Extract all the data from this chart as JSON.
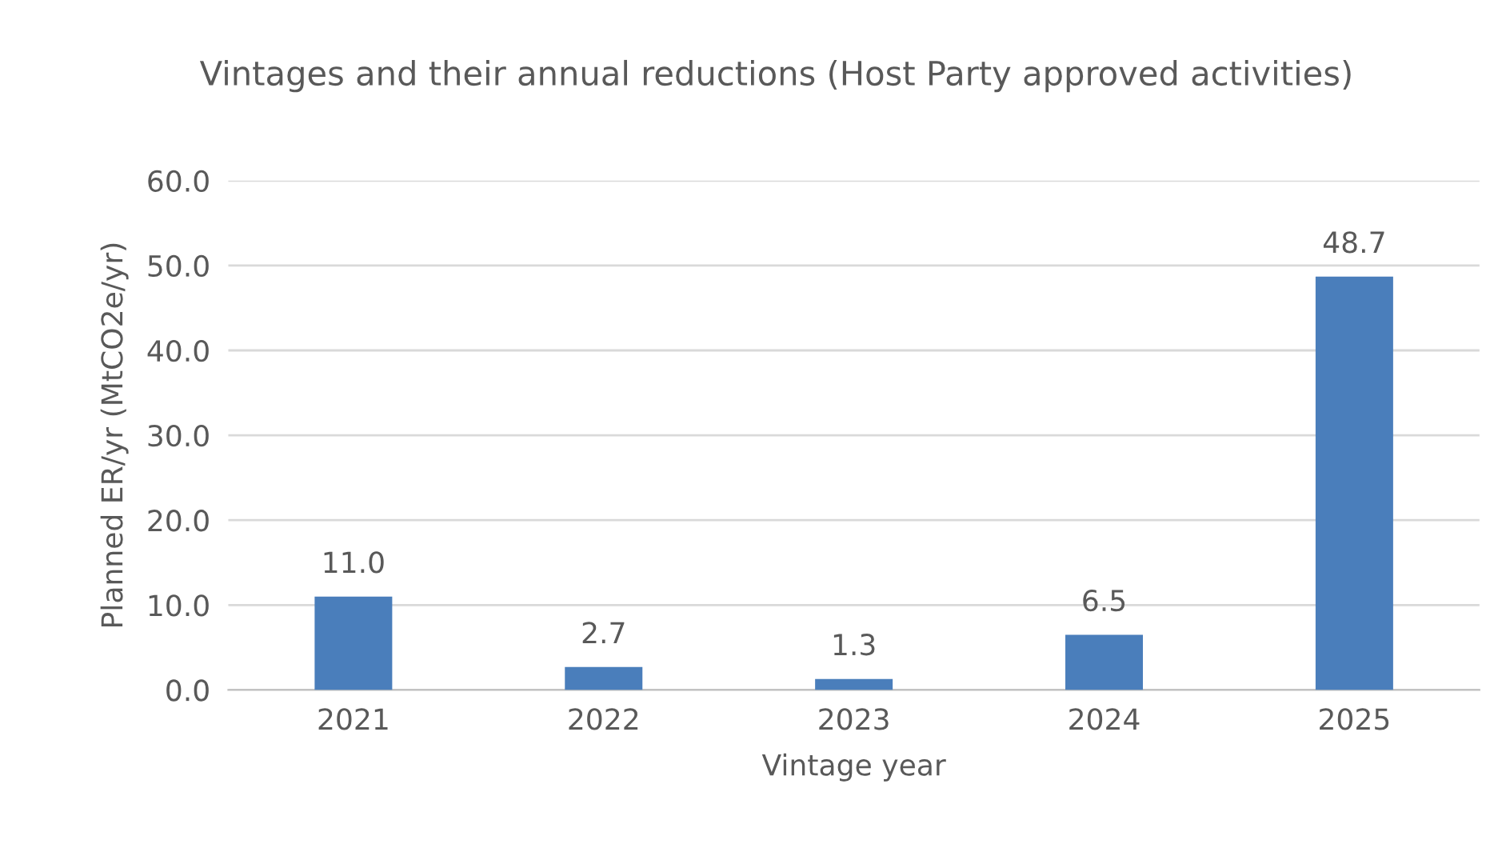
{
  "chart_data": {
    "type": "bar",
    "title": "Vintages and their annual reductions (Host Party approved activities)",
    "xlabel": "Vintage year",
    "ylabel": "Planned ER/yr (MtCO2e/yr)",
    "categories": [
      "2021",
      "2022",
      "2023",
      "2024",
      "2025"
    ],
    "values": [
      11.0,
      2.7,
      1.3,
      6.5,
      48.7
    ],
    "value_labels": [
      "11.0",
      "2.7",
      "1.3",
      "6.5",
      "48.7"
    ],
    "color": "#4a7ebb",
    "ylim": [
      0,
      60
    ],
    "yticks": [
      {
        "value": 0,
        "label": "0.0"
      },
      {
        "value": 10,
        "label": "10.0"
      },
      {
        "value": 20,
        "label": "20.0"
      },
      {
        "value": 30,
        "label": "30.0"
      },
      {
        "value": 40,
        "label": "40.0"
      },
      {
        "value": 50,
        "label": "50.0"
      },
      {
        "value": 60,
        "label": "60.0"
      }
    ],
    "grid": "y"
  }
}
